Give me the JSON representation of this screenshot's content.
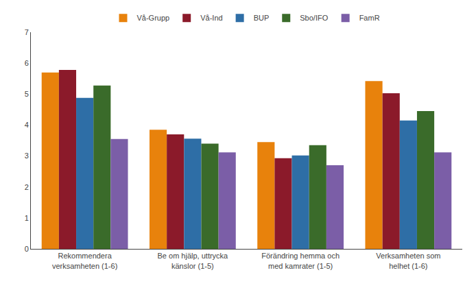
{
  "chart_data": {
    "type": "bar",
    "categories": [
      "Rekommendera\nverksamheten (1-6)",
      "Be om hjälp, uttrycka\nkänslor (1-5)",
      "Förändring hemma och\nmed kamrater (1-5)",
      "Verksamheten som\nhelhet (1-6)"
    ],
    "series": [
      {
        "name": "Vå-Grupp",
        "color": "#E8820C",
        "values": [
          5.7,
          3.85,
          3.45,
          5.42
        ]
      },
      {
        "name": "Vå-Ind",
        "color": "#8B1A2A",
        "values": [
          5.78,
          3.7,
          2.93,
          5.03
        ]
      },
      {
        "name": "BUP",
        "color": "#2E6EA6",
        "values": [
          4.88,
          3.56,
          3.02,
          4.15
        ]
      },
      {
        "name": "Sbo/IFO",
        "color": "#3A6B2A",
        "values": [
          5.28,
          3.4,
          3.35,
          4.45
        ]
      },
      {
        "name": "FamR",
        "color": "#7B5EA7",
        "values": [
          3.55,
          3.12,
          2.7,
          3.12
        ]
      }
    ],
    "ylim": [
      0,
      7
    ],
    "yticks": [
      0,
      1,
      2,
      3,
      4,
      5,
      6,
      7
    ],
    "grid": false,
    "legend": "top"
  }
}
